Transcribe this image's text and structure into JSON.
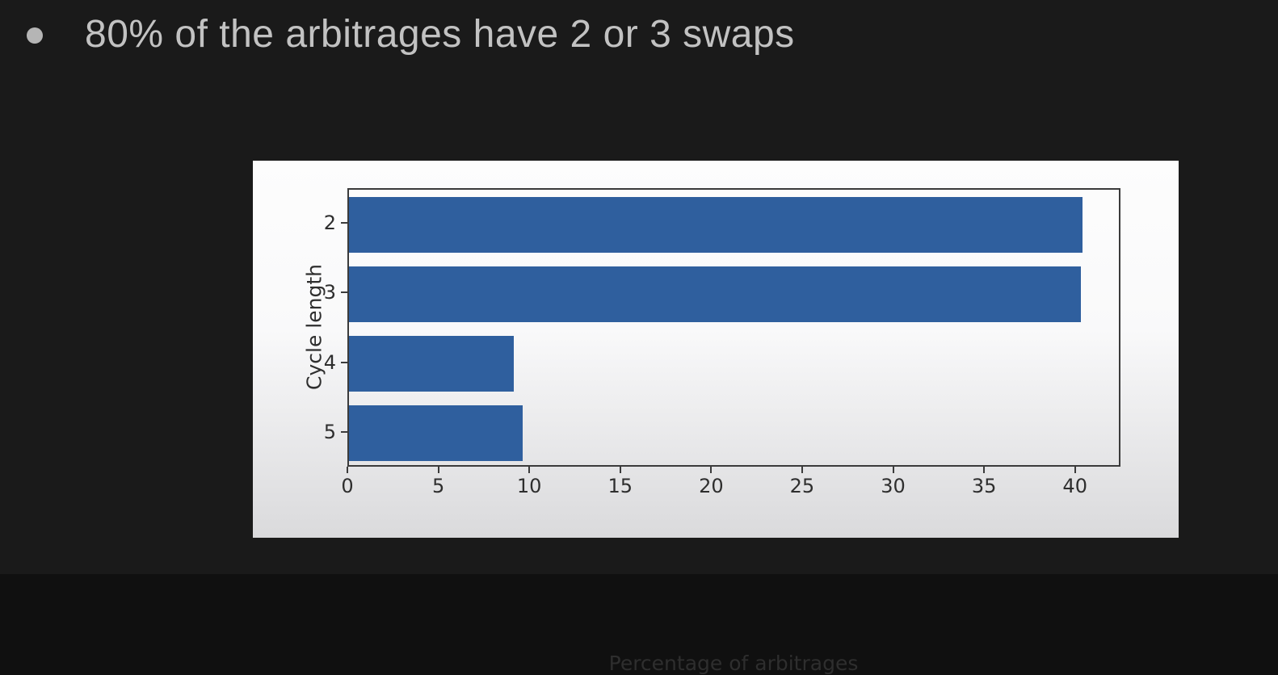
{
  "slide": {
    "bullet_text": "80% of the arbitrages have 2 or 3 swaps"
  },
  "colors": {
    "slide_background": "#1a1a1a",
    "bullet_dot": "#b5b5b5",
    "bullet_text": "#c2c2c2",
    "bar": "#2f5f9e",
    "axis_text": "#2e2e2e",
    "spine": "#3b3b3b"
  },
  "chart_data": {
    "type": "bar",
    "orientation": "horizontal",
    "title": "",
    "categories": [
      "2",
      "3",
      "4",
      "5"
    ],
    "values": [
      40.5,
      40.4,
      9.1,
      9.6
    ],
    "xlabel": "Percentage of arbitrages",
    "ylabel": "Cycle length",
    "xlim": [
      0,
      42.5
    ],
    "xticks": [
      0,
      5,
      10,
      15,
      20,
      25,
      30,
      35,
      40
    ],
    "grid": false,
    "legend": false,
    "bar_color": "#2f5f9e",
    "bar_height_fraction": 0.8
  }
}
